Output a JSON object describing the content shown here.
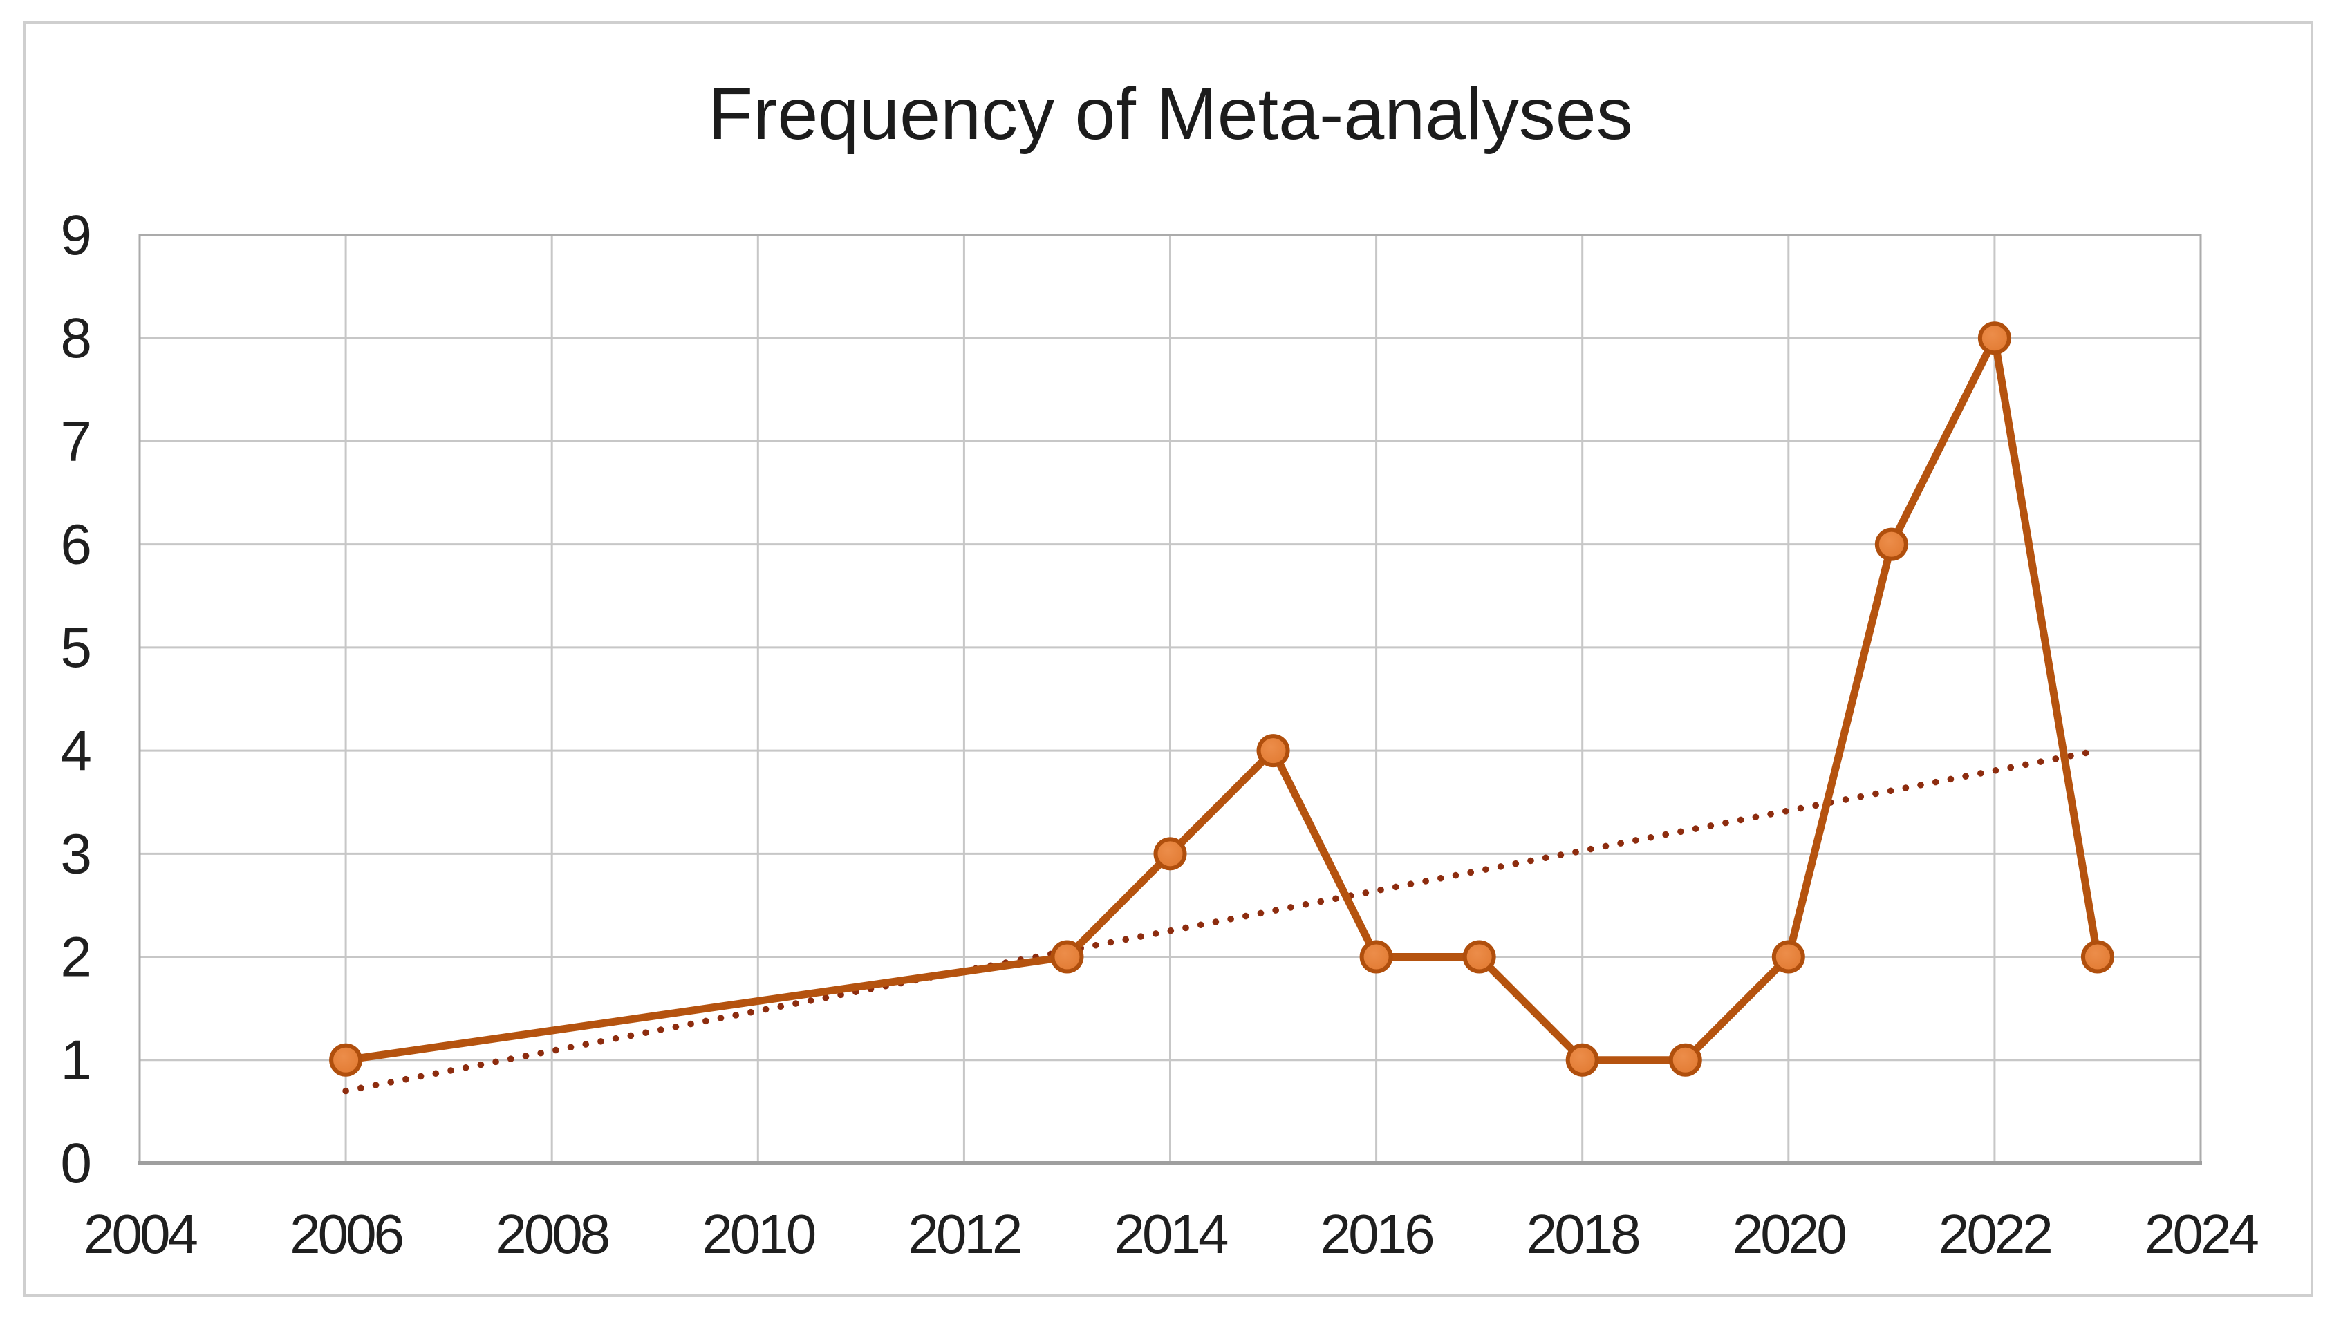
{
  "chart_data": {
    "type": "line",
    "title": "Frequency of Meta-analyses",
    "x": [
      2006,
      2013,
      2014,
      2015,
      2016,
      2017,
      2018,
      2019,
      2020,
      2021,
      2022,
      2023
    ],
    "values": [
      1,
      2,
      3,
      4,
      2,
      2,
      1,
      1,
      2,
      6,
      8,
      2
    ],
    "xlabel": "",
    "ylabel": "",
    "xlim": [
      2004,
      2024
    ],
    "ylim": [
      0,
      9
    ],
    "x_ticks": [
      2004,
      2006,
      2008,
      2010,
      2012,
      2014,
      2016,
      2018,
      2020,
      2022,
      2024
    ],
    "y_ticks": [
      0,
      1,
      2,
      3,
      4,
      5,
      6,
      7,
      8,
      9
    ],
    "grid": true,
    "legend": false,
    "trendline": {
      "style": "dotted",
      "x_start": 2006,
      "y_start": 0.7,
      "x_end": 2023,
      "y_end": 4.0
    },
    "colors": {
      "series_line": "#b5530f",
      "marker_fill": "#e27b33",
      "marker_fill_light": "#ec8d4a",
      "marker_border": "#b04f0d",
      "trendline": "#8d2c0e",
      "gridline": "#c7c7c7",
      "plot_border": "#ababab",
      "axis_line": "#9f9f9f",
      "tick_text": "#1f1f1f",
      "title_text": "#1c1c1c",
      "outer_border": "#cfcfcf"
    }
  }
}
